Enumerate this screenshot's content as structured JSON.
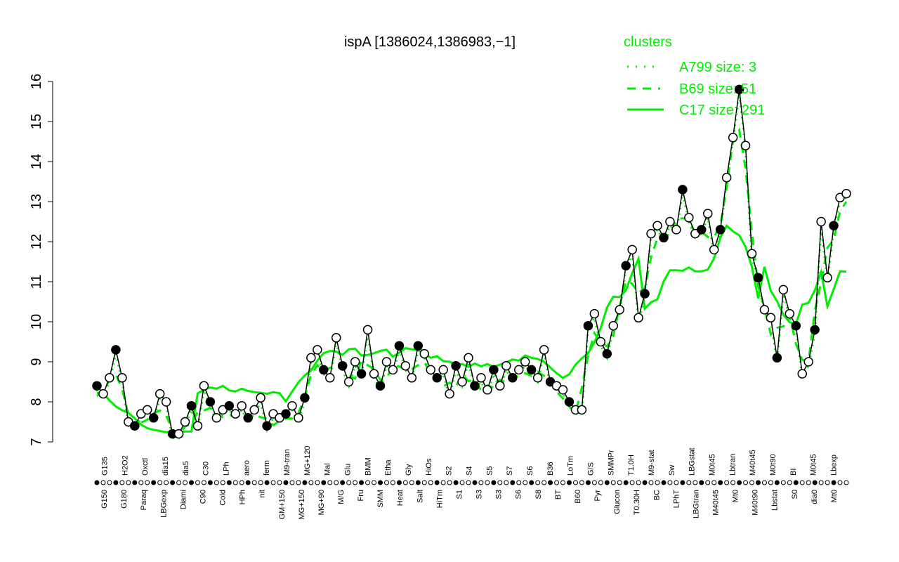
{
  "chart_data": {
    "type": "line",
    "title": "ispA [1386024,1386983,−1]",
    "xlabel": "",
    "ylabel": "",
    "ylim": [
      7,
      16
    ],
    "yticks": [
      7,
      8,
      9,
      10,
      11,
      12,
      13,
      14,
      15,
      16
    ],
    "grid": false,
    "legend": {
      "title": "clusters",
      "position": "top-right",
      "color": "#00ee00",
      "entries": [
        {
          "name": "A799 size: 3",
          "style": "dotted"
        },
        {
          "name": "B69 size: 51",
          "style": "dashed"
        },
        {
          "name": "C17 size: 291",
          "style": "solid"
        }
      ]
    },
    "x_labels_bottom": [
      "G150",
      "G180",
      "Paraq",
      "LBGexp",
      "Diami",
      "C90",
      "Cold",
      "HPh",
      "nit",
      "GM+150",
      "MG+150",
      "MG+90",
      "M/G",
      "Fru",
      "SMM",
      "Heat",
      "Salt",
      "HiTm",
      "S1",
      "S3",
      "S3",
      "S6",
      "S8",
      "BT",
      "B60",
      "Pyr",
      "Glucon",
      "T0.30H",
      "BC",
      "LPhT",
      "LBGtran",
      "M40t45",
      "Mt0",
      "M40t90",
      "Lbstat",
      "S0",
      "dia0",
      "Mt0"
    ],
    "x_labels_top": [
      "G135",
      "H2O2",
      "Oxctl",
      "dia15",
      "dia5",
      "C30",
      "LPh",
      "aero",
      "ferm",
      "M9-tran",
      "MG+120",
      "Mal",
      "Glu",
      "BMM",
      "Etha",
      "Gly",
      "HiOs",
      "S2",
      "S4",
      "S5",
      "S7",
      "S6",
      "B36",
      "LoTm",
      "G/S",
      "SMMPr",
      "T1.0H",
      "M9-stat",
      "Sw",
      "LBGstat",
      "M0t45",
      "Lbtran",
      "M40t45",
      "M0t90",
      "BI",
      "M0t45",
      "Lbexp"
    ],
    "series": [
      {
        "name": "expression",
        "color": "#000000",
        "x": [
          0,
          1,
          2,
          3,
          4,
          5,
          6,
          7,
          8,
          9,
          10,
          11,
          12,
          13,
          14,
          15,
          16,
          17,
          18,
          19,
          20,
          21,
          22,
          23,
          24,
          25,
          26,
          27,
          28,
          29,
          30,
          31,
          32,
          33,
          34,
          35,
          36,
          37,
          38,
          39,
          40,
          41,
          42,
          43,
          44,
          45,
          46,
          47,
          48,
          49,
          50,
          51,
          52,
          53,
          54,
          55,
          56,
          57,
          58,
          59,
          60,
          61,
          62,
          63,
          64,
          65,
          66,
          67,
          68,
          69,
          70,
          71,
          72,
          73,
          74,
          75,
          76,
          77,
          78,
          79,
          80,
          81,
          82,
          83,
          84,
          85,
          86,
          87,
          88,
          89,
          90,
          91,
          92,
          93,
          94,
          95,
          96,
          97,
          98,
          99,
          100,
          101,
          102,
          103,
          104,
          105,
          106,
          107,
          108,
          109,
          110,
          111,
          112,
          113,
          114,
          115,
          116,
          117,
          118,
          119
        ],
        "values": [
          8.4,
          8.2,
          8.6,
          9.3,
          8.6,
          7.5,
          7.4,
          7.7,
          7.8,
          7.6,
          8.2,
          8.0,
          7.2,
          7.2,
          7.5,
          7.9,
          7.4,
          8.4,
          8.0,
          7.6,
          7.8,
          7.9,
          7.7,
          7.9,
          7.6,
          7.8,
          8.1,
          7.4,
          7.7,
          7.6,
          7.7,
          7.9,
          7.6,
          8.1,
          9.1,
          9.3,
          8.8,
          8.6,
          9.6,
          8.9,
          8.5,
          9.0,
          8.7,
          9.8,
          8.7,
          8.4,
          9.0,
          8.8,
          9.4,
          8.9,
          8.6,
          9.4,
          9.2,
          8.8,
          8.6,
          8.8,
          8.2,
          8.9,
          8.5,
          9.1,
          8.4,
          8.6,
          8.3,
          8.8,
          8.4,
          8.9,
          8.6,
          8.8,
          9.0,
          8.8,
          8.6,
          9.3,
          8.5,
          8.4,
          8.3,
          8.0,
          7.8,
          7.8,
          9.9,
          10.2,
          9.5,
          9.2,
          9.9,
          10.3,
          11.4,
          11.8,
          10.1,
          10.7,
          12.2,
          12.4,
          12.1,
          12.5,
          12.3,
          13.3,
          12.6,
          12.2,
          12.3,
          12.7,
          11.8,
          12.3,
          13.6,
          14.6,
          15.8,
          14.4,
          11.7,
          11.1,
          10.3,
          10.1,
          9.1,
          10.8,
          10.2,
          9.9,
          8.7,
          9.0,
          9.8,
          12.5,
          11.1,
          12.4,
          13.1,
          13.2
        ]
      }
    ]
  }
}
